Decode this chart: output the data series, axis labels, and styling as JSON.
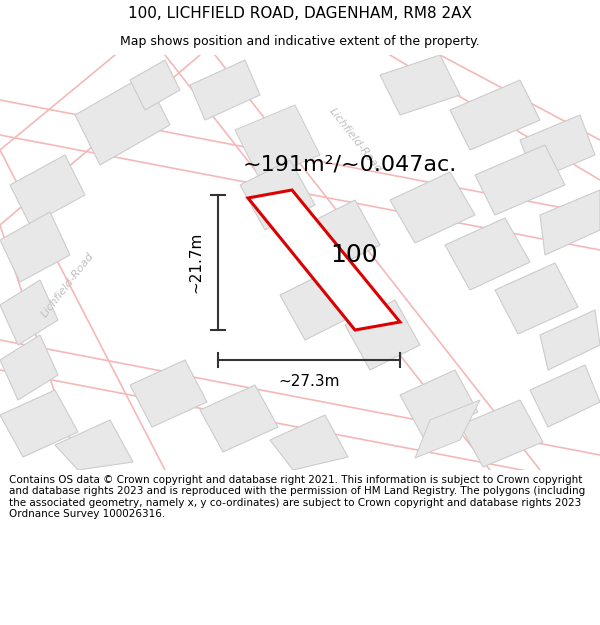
{
  "title": "100, LICHFIELD ROAD, DAGENHAM, RM8 2AX",
  "subtitle": "Map shows position and indicative extent of the property.",
  "area_text": "~191m²/~0.047ac.",
  "plot_label": "100",
  "dim_vertical": "~21.7m",
  "dim_horizontal": "~27.3m",
  "road_label_upper": "Lichfield-Road",
  "road_label_left": "Lichfield-Road",
  "footer": "Contains OS data © Crown copyright and database right 2021. This information is subject to Crown copyright and database rights 2023 and is reproduced with the permission of HM Land Registry. The polygons (including the associated geometry, namely x, y co-ordinates) are subject to Crown copyright and database rights 2023 Ordnance Survey 100026316.",
  "map_bg": "#ffffff",
  "building_fill": "#e8e8e8",
  "building_edge": "#cccccc",
  "road_color": "#f5b8b8",
  "road_label_color": "#c0c0c0",
  "plot_edge_color": "#dd0000",
  "plot_fill": "#ffffff",
  "dim_color": "#333333",
  "title_fontsize": 11,
  "subtitle_fontsize": 9,
  "area_fontsize": 16,
  "plot_label_fontsize": 18,
  "dim_fontsize": 11,
  "footer_fontsize": 7.5
}
